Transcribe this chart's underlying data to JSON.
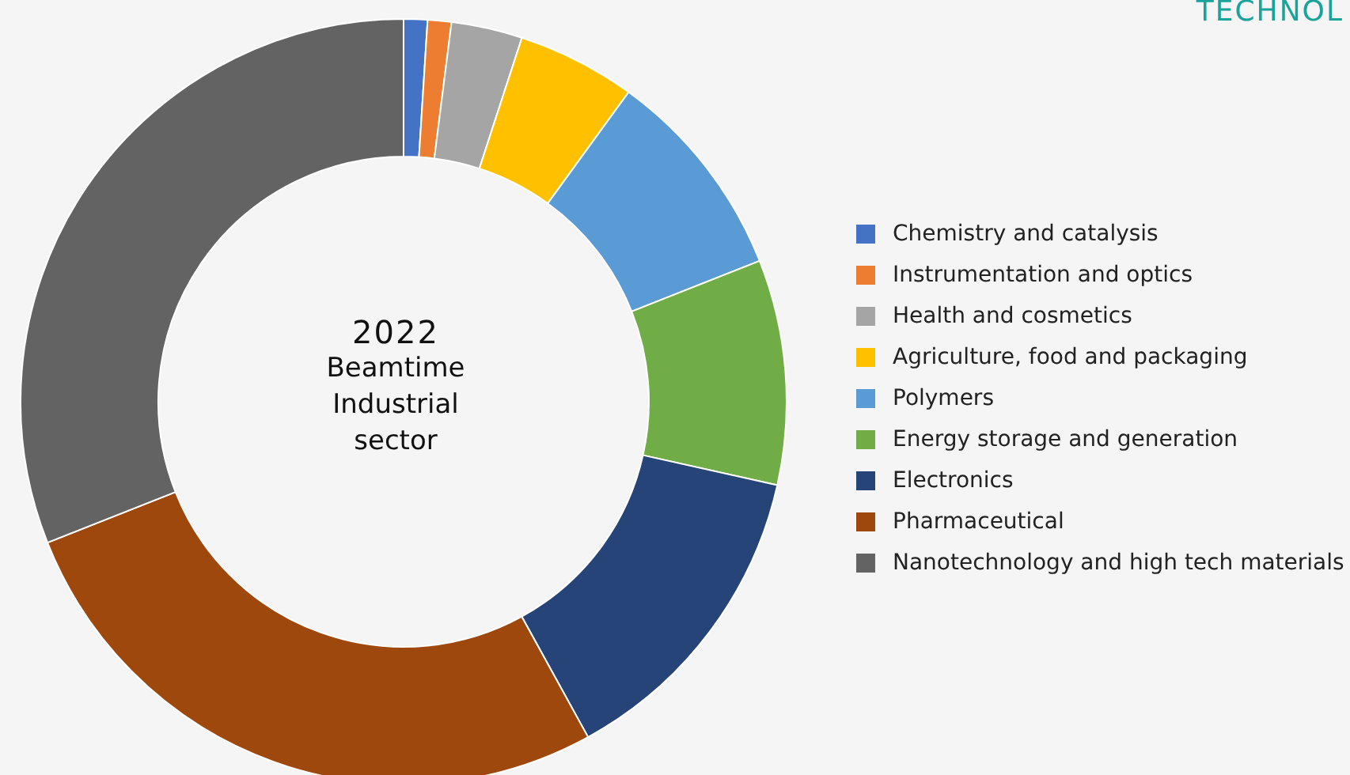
{
  "chart_data": {
    "type": "donut",
    "title": "2022",
    "subtitle": "Beamtime Industrial sector",
    "categories": [
      "Chemistry and catalysis",
      "Instrumentation and optics",
      "Health and cosmetics",
      "Agriculture, food and packaging",
      "Polymers",
      "Energy storage and generation",
      "Electronics",
      "Pharmaceutical",
      "Nanotechnology and high tech materials"
    ],
    "values": [
      1,
      1,
      3,
      5,
      9,
      9.5,
      13.5,
      27,
      31
    ],
    "colors": [
      "#4472c4",
      "#ed7d31",
      "#a5a5a5",
      "#ffc000",
      "#5b9bd5",
      "#70ad47",
      "#264478",
      "#9e480e",
      "#636363"
    ],
    "legend": "right",
    "annotations": [
      "TECHNOL"
    ]
  }
}
